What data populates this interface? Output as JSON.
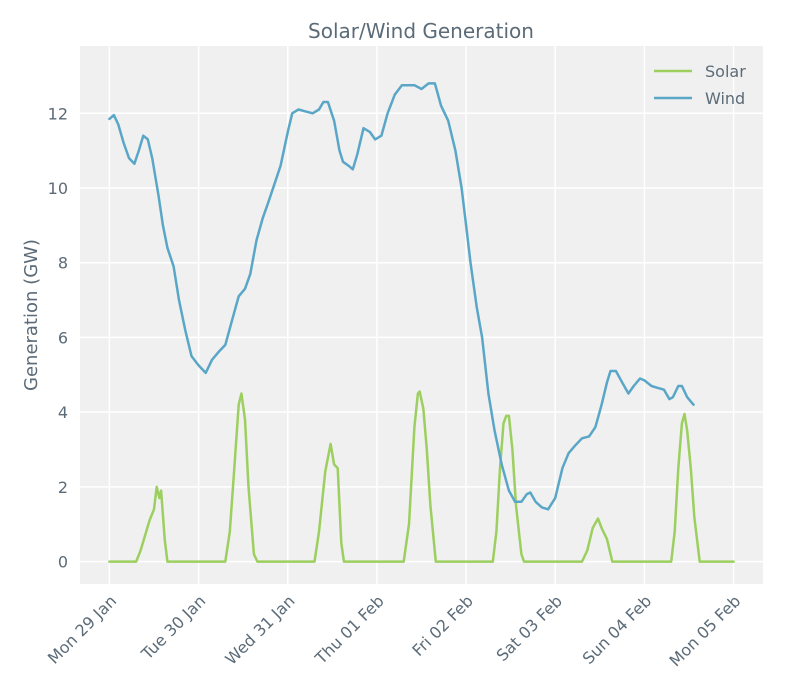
{
  "chart_data": {
    "type": "line",
    "title": "Solar/Wind Generation",
    "xlabel": "",
    "ylabel": "Generation (GW)",
    "ylim": [
      -0.6,
      13.8
    ],
    "yticks": [
      0,
      2,
      4,
      6,
      8,
      10,
      12
    ],
    "xlim_days": [
      -0.33,
      7.33
    ],
    "x_ticks": [
      {
        "day": 0,
        "label": "Mon 29 Jan"
      },
      {
        "day": 1,
        "label": "Tue 30 Jan"
      },
      {
        "day": 2,
        "label": "Wed 31 Jan"
      },
      {
        "day": 3,
        "label": "Thu 01 Feb"
      },
      {
        "day": 4,
        "label": "Fri 02 Feb"
      },
      {
        "day": 5,
        "label": "Sat 03 Feb"
      },
      {
        "day": 6,
        "label": "Sun 04 Feb"
      },
      {
        "day": 7,
        "label": "Mon 05 Feb"
      }
    ],
    "grid": true,
    "legend_position": "top-right",
    "series": [
      {
        "name": "Solar",
        "color": "#9ccf5f",
        "points": [
          [
            0.0,
            0
          ],
          [
            0.3,
            0
          ],
          [
            0.35,
            0.3
          ],
          [
            0.4,
            0.7
          ],
          [
            0.45,
            1.1
          ],
          [
            0.5,
            1.4
          ],
          [
            0.53,
            2.0
          ],
          [
            0.56,
            1.7
          ],
          [
            0.58,
            1.9
          ],
          [
            0.62,
            0.6
          ],
          [
            0.65,
            0
          ],
          [
            1.0,
            0
          ],
          [
            1.3,
            0
          ],
          [
            1.35,
            0.8
          ],
          [
            1.4,
            2.5
          ],
          [
            1.45,
            4.2
          ],
          [
            1.48,
            4.5
          ],
          [
            1.52,
            3.8
          ],
          [
            1.56,
            2.0
          ],
          [
            1.62,
            0.2
          ],
          [
            1.66,
            0
          ],
          [
            2.0,
            0
          ],
          [
            2.3,
            0
          ],
          [
            2.35,
            0.8
          ],
          [
            2.42,
            2.4
          ],
          [
            2.48,
            3.15
          ],
          [
            2.52,
            2.6
          ],
          [
            2.56,
            2.5
          ],
          [
            2.6,
            0.5
          ],
          [
            2.63,
            0
          ],
          [
            3.0,
            0
          ],
          [
            3.3,
            0
          ],
          [
            3.36,
            1.0
          ],
          [
            3.42,
            3.6
          ],
          [
            3.46,
            4.5
          ],
          [
            3.48,
            4.55
          ],
          [
            3.52,
            4.1
          ],
          [
            3.56,
            3.0
          ],
          [
            3.6,
            1.5
          ],
          [
            3.66,
            0
          ],
          [
            4.0,
            0
          ],
          [
            4.3,
            0
          ],
          [
            4.34,
            0.8
          ],
          [
            4.38,
            2.5
          ],
          [
            4.42,
            3.7
          ],
          [
            4.45,
            3.9
          ],
          [
            4.48,
            3.9
          ],
          [
            4.52,
            3.0
          ],
          [
            4.56,
            1.5
          ],
          [
            4.62,
            0.2
          ],
          [
            4.65,
            0
          ],
          [
            5.0,
            0
          ],
          [
            5.3,
            0
          ],
          [
            5.36,
            0.3
          ],
          [
            5.42,
            0.9
          ],
          [
            5.48,
            1.15
          ],
          [
            5.52,
            0.9
          ],
          [
            5.58,
            0.6
          ],
          [
            5.64,
            0
          ],
          [
            6.0,
            0
          ],
          [
            6.3,
            0
          ],
          [
            6.34,
            0.8
          ],
          [
            6.38,
            2.5
          ],
          [
            6.42,
            3.7
          ],
          [
            6.45,
            3.95
          ],
          [
            6.48,
            3.5
          ],
          [
            6.52,
            2.5
          ],
          [
            6.56,
            1.2
          ],
          [
            6.62,
            0
          ],
          [
            7.0,
            0
          ]
        ]
      },
      {
        "name": "Wind",
        "color": "#5aa6c7",
        "points": [
          [
            0.0,
            11.85
          ],
          [
            0.05,
            11.95
          ],
          [
            0.1,
            11.7
          ],
          [
            0.16,
            11.2
          ],
          [
            0.22,
            10.8
          ],
          [
            0.28,
            10.65
          ],
          [
            0.33,
            11.0
          ],
          [
            0.38,
            11.4
          ],
          [
            0.43,
            11.3
          ],
          [
            0.48,
            10.8
          ],
          [
            0.55,
            9.8
          ],
          [
            0.6,
            9.0
          ],
          [
            0.65,
            8.4
          ],
          [
            0.72,
            7.9
          ],
          [
            0.78,
            7.0
          ],
          [
            0.85,
            6.2
          ],
          [
            0.92,
            5.5
          ],
          [
            1.0,
            5.25
          ],
          [
            1.08,
            5.05
          ],
          [
            1.15,
            5.4
          ],
          [
            1.22,
            5.6
          ],
          [
            1.3,
            5.8
          ],
          [
            1.38,
            6.5
          ],
          [
            1.45,
            7.1
          ],
          [
            1.52,
            7.3
          ],
          [
            1.58,
            7.7
          ],
          [
            1.65,
            8.6
          ],
          [
            1.72,
            9.2
          ],
          [
            1.78,
            9.6
          ],
          [
            1.85,
            10.1
          ],
          [
            1.92,
            10.6
          ],
          [
            2.0,
            11.5
          ],
          [
            2.05,
            12.0
          ],
          [
            2.12,
            12.1
          ],
          [
            2.2,
            12.05
          ],
          [
            2.28,
            12.0
          ],
          [
            2.35,
            12.1
          ],
          [
            2.4,
            12.3
          ],
          [
            2.45,
            12.3
          ],
          [
            2.52,
            11.8
          ],
          [
            2.58,
            11.0
          ],
          [
            2.62,
            10.7
          ],
          [
            2.68,
            10.6
          ],
          [
            2.73,
            10.5
          ],
          [
            2.78,
            10.9
          ],
          [
            2.85,
            11.6
          ],
          [
            2.92,
            11.5
          ],
          [
            2.98,
            11.3
          ],
          [
            3.05,
            11.4
          ],
          [
            3.12,
            12.0
          ],
          [
            3.2,
            12.5
          ],
          [
            3.28,
            12.75
          ],
          [
            3.35,
            12.75
          ],
          [
            3.42,
            12.75
          ],
          [
            3.5,
            12.65
          ],
          [
            3.58,
            12.8
          ],
          [
            3.65,
            12.8
          ],
          [
            3.72,
            12.2
          ],
          [
            3.8,
            11.8
          ],
          [
            3.88,
            11.0
          ],
          [
            3.95,
            10.0
          ],
          [
            4.0,
            9.0
          ],
          [
            4.05,
            8.0
          ],
          [
            4.12,
            6.8
          ],
          [
            4.18,
            6.0
          ],
          [
            4.25,
            4.5
          ],
          [
            4.32,
            3.5
          ],
          [
            4.4,
            2.6
          ],
          [
            4.48,
            1.9
          ],
          [
            4.55,
            1.6
          ],
          [
            4.62,
            1.6
          ],
          [
            4.68,
            1.8
          ],
          [
            4.72,
            1.85
          ],
          [
            4.78,
            1.6
          ],
          [
            4.85,
            1.45
          ],
          [
            4.92,
            1.4
          ],
          [
            5.0,
            1.7
          ],
          [
            5.08,
            2.5
          ],
          [
            5.15,
            2.9
          ],
          [
            5.22,
            3.1
          ],
          [
            5.3,
            3.3
          ],
          [
            5.38,
            3.35
          ],
          [
            5.45,
            3.6
          ],
          [
            5.52,
            4.2
          ],
          [
            5.58,
            4.8
          ],
          [
            5.62,
            5.1
          ],
          [
            5.68,
            5.1
          ],
          [
            5.75,
            4.8
          ],
          [
            5.82,
            4.5
          ],
          [
            5.88,
            4.7
          ],
          [
            5.95,
            4.9
          ],
          [
            6.0,
            4.85
          ],
          [
            6.08,
            4.7
          ],
          [
            6.15,
            4.65
          ],
          [
            6.22,
            4.6
          ],
          [
            6.28,
            4.35
          ],
          [
            6.32,
            4.4
          ],
          [
            6.38,
            4.7
          ],
          [
            6.42,
            4.7
          ],
          [
            6.48,
            4.4
          ],
          [
            6.55,
            4.2
          ]
        ]
      }
    ]
  }
}
